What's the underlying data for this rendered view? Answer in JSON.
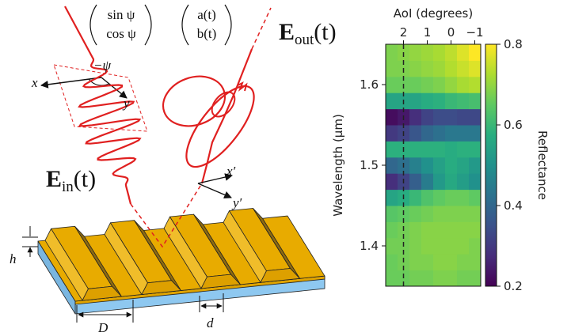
{
  "diagram": {
    "jones_in": [
      "sin ψ",
      "cos ψ"
    ],
    "jones_out": [
      "a(t)",
      "b(t)"
    ],
    "e_out": {
      "symbol": "E",
      "subscript": "out",
      "argument": "(t)"
    },
    "e_in": {
      "symbol": "E",
      "subscript": "in",
      "argument": "(t)"
    },
    "angle": "−ψ",
    "axes_in": [
      "x",
      "y"
    ],
    "axes_out": [
      "x′",
      "y′"
    ],
    "height": "h",
    "period": "D",
    "width": "d"
  },
  "chart_data": {
    "type": "heatmap",
    "xlabel": "AoI (degrees)",
    "ylabel": "Wavelength (μm)",
    "x": [
      2.5,
      2,
      1.5,
      1,
      0.5,
      0,
      -0.5,
      -1
    ],
    "y": [
      1.36,
      1.38,
      1.4,
      1.42,
      1.44,
      1.46,
      1.48,
      1.5,
      1.52,
      1.54,
      1.56,
      1.58,
      1.6,
      1.62,
      1.64
    ],
    "z": [
      [
        0.66,
        0.66,
        0.67,
        0.67,
        0.68,
        0.68,
        0.67,
        0.67
      ],
      [
        0.66,
        0.67,
        0.68,
        0.68,
        0.69,
        0.69,
        0.68,
        0.68
      ],
      [
        0.67,
        0.67,
        0.68,
        0.69,
        0.69,
        0.69,
        0.69,
        0.68
      ],
      [
        0.66,
        0.67,
        0.68,
        0.69,
        0.69,
        0.69,
        0.69,
        0.69
      ],
      [
        0.64,
        0.65,
        0.66,
        0.67,
        0.68,
        0.68,
        0.68,
        0.68
      ],
      [
        0.55,
        0.57,
        0.6,
        0.63,
        0.65,
        0.66,
        0.66,
        0.65
      ],
      [
        0.28,
        0.32,
        0.38,
        0.45,
        0.52,
        0.56,
        0.53,
        0.5
      ],
      [
        0.4,
        0.42,
        0.46,
        0.5,
        0.54,
        0.57,
        0.55,
        0.52
      ],
      [
        0.58,
        0.58,
        0.58,
        0.58,
        0.58,
        0.57,
        0.58,
        0.58
      ],
      [
        0.3,
        0.32,
        0.36,
        0.4,
        0.42,
        0.44,
        0.44,
        0.44
      ],
      [
        0.22,
        0.24,
        0.28,
        0.32,
        0.34,
        0.34,
        0.33,
        0.33
      ],
      [
        0.55,
        0.55,
        0.55,
        0.57,
        0.58,
        0.6,
        0.61,
        0.62
      ],
      [
        0.66,
        0.66,
        0.66,
        0.67,
        0.68,
        0.7,
        0.72,
        0.73
      ],
      [
        0.68,
        0.68,
        0.69,
        0.7,
        0.71,
        0.73,
        0.75,
        0.77
      ],
      [
        0.68,
        0.69,
        0.7,
        0.71,
        0.72,
        0.74,
        0.77,
        0.8
      ]
    ],
    "xlim": [
      2.75,
      -1.25
    ],
    "ylim": [
      1.35,
      1.65
    ],
    "xticks": [
      2,
      1,
      0,
      {
        "value": -1,
        "label": "−1"
      }
    ],
    "yticks": [
      1.4,
      1.5,
      1.6
    ],
    "colorbar": {
      "label": "Reflectance",
      "lim": [
        0.2,
        0.8
      ],
      "ticks": [
        0.2,
        0.4,
        0.6,
        0.8
      ],
      "colormap": [
        "#440154",
        "#472d7b",
        "#3b528b",
        "#2c728e",
        "#21918c",
        "#28ae80",
        "#5ec962",
        "#addc30",
        "#fde725"
      ]
    },
    "reference_line": {
      "x": 2,
      "color": "#222222",
      "style": "dashed"
    }
  }
}
